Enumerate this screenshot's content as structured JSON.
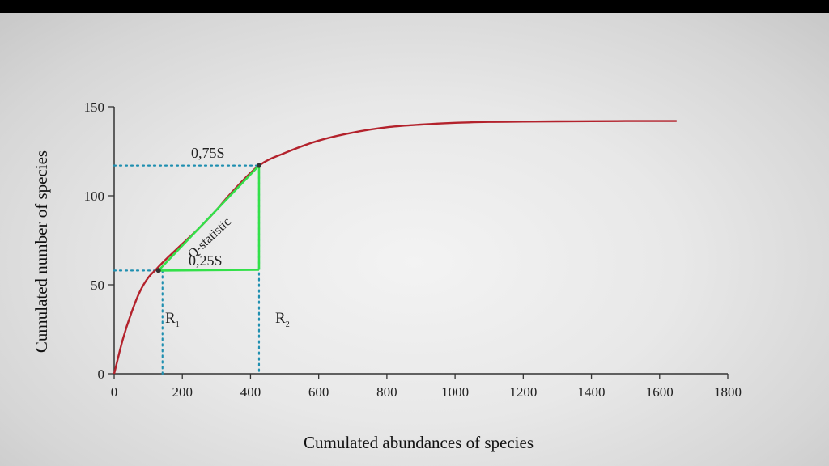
{
  "chart_data": {
    "type": "line",
    "xlabel": "Cumulated abundances of species",
    "ylabel": "Cumulated number of species",
    "xlim": [
      0,
      1800
    ],
    "ylim": [
      0,
      150
    ],
    "x_ticks": [
      0,
      200,
      400,
      600,
      800,
      1000,
      1200,
      1400,
      1600,
      1800
    ],
    "y_ticks": [
      0,
      50,
      100,
      150
    ],
    "grid": false,
    "series": [
      {
        "color": "#b3222c",
        "x": [
          0,
          25,
          50,
          75,
          100,
          125,
          150,
          200,
          250,
          300,
          350,
          425,
          500,
          600,
          700,
          800,
          900,
          1000,
          1100,
          1200,
          1300,
          1400,
          1500,
          1600,
          1650
        ],
        "y": [
          0,
          19,
          34,
          46,
          54,
          59,
          64,
          73,
          82,
          92,
          103,
          117,
          124,
          131,
          135.5,
          138.5,
          140,
          141,
          141.5,
          141.7,
          141.8,
          141.9,
          142,
          142,
          142
        ]
      }
    ],
    "reference_points": {
      "r1": {
        "x": 130,
        "y": 58
      },
      "r2": {
        "x": 425,
        "y": 117
      }
    },
    "annotations": {
      "upper_quartile": "0,75S",
      "lower_quartile": "0,25S",
      "slope": "Q-statistic",
      "r1": "R",
      "r1_sub": "1",
      "r2": "R",
      "r2_sub": "2"
    },
    "colors": {
      "curve": "#b3222c",
      "q_triangle": "#33e04a",
      "guides": "#1f8fb0",
      "axis": "#333333"
    }
  }
}
